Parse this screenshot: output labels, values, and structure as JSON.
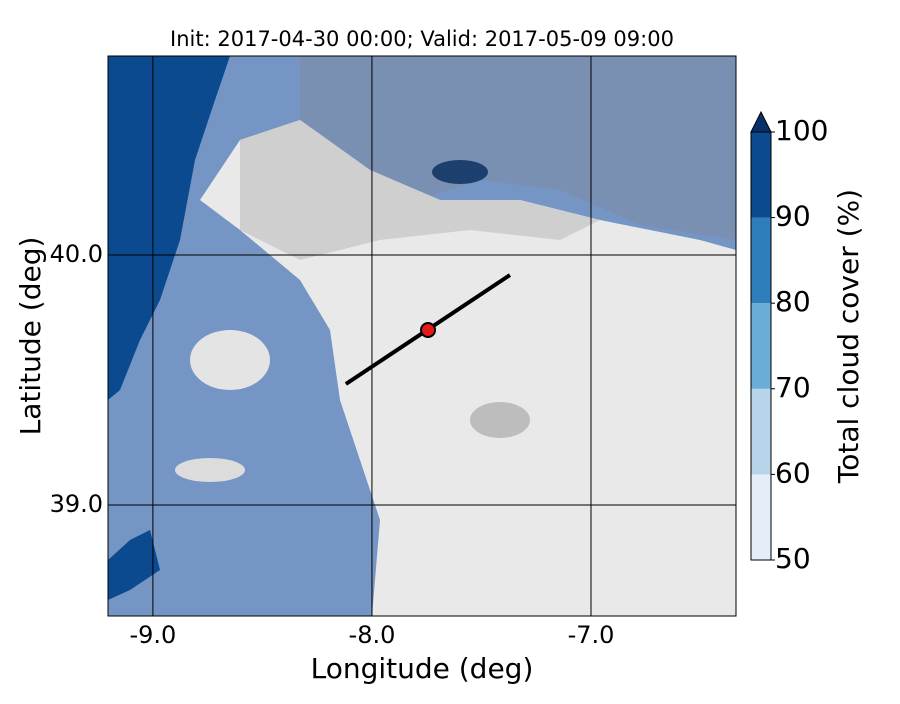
{
  "title": "Init: 2017-04-30 00:00; Valid: 2017-05-09 09:00",
  "x_axis": {
    "label": "Longitude (deg)",
    "lim": [
      -9.205,
      -6.338
    ],
    "ticks": [
      {
        "value": -9,
        "label": "-9.0"
      },
      {
        "value": -8,
        "label": "-8.0"
      },
      {
        "value": -7,
        "label": "-7.0"
      }
    ]
  },
  "y_axis": {
    "label": "Latitude (deg)",
    "lim": [
      38.556,
      40.796
    ],
    "ticks": [
      {
        "value": 39,
        "label": "39.0"
      },
      {
        "value": 40,
        "label": "40.0"
      }
    ]
  },
  "colorbar": {
    "label": "Total cloud cover (%)",
    "lim": [
      50,
      100
    ],
    "ticks": [
      50,
      60,
      70,
      80,
      90,
      100
    ],
    "colors": [
      "#e3eef8",
      "#b7d4ea",
      "#6aaed6",
      "#2e7ebc",
      "#0b4a8f"
    ],
    "extend_color": "#08306b"
  },
  "point": {
    "lon": -7.744,
    "lat": 39.7,
    "color": "#e31a1c"
  },
  "transect": {
    "lon": [
      -8.119,
      -7.37
    ],
    "lat": [
      39.484,
      39.92
    ]
  }
}
